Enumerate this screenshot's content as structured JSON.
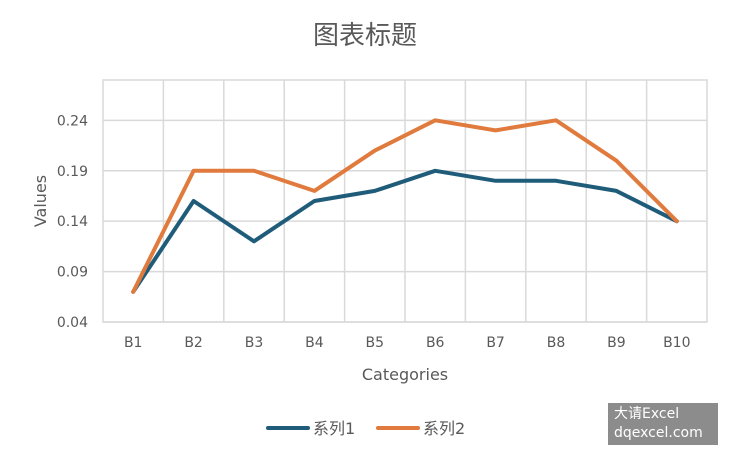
{
  "chart_data": {
    "type": "line",
    "title": "图表标题",
    "xlabel": "Categories",
    "ylabel": "Values",
    "categories": [
      "B1",
      "B2",
      "B3",
      "B4",
      "B5",
      "B6",
      "B7",
      "B8",
      "B9",
      "B10"
    ],
    "ylim": [
      0.04,
      0.28
    ],
    "yticks": [
      "0.04",
      "0.09",
      "0.14",
      "0.19",
      "0.24"
    ],
    "grid": true,
    "legend_position": "bottom",
    "series": [
      {
        "name": "系列1",
        "color": "#1f5c7a",
        "values": [
          0.07,
          0.16,
          0.12,
          0.16,
          0.17,
          0.19,
          0.18,
          0.18,
          0.17,
          0.14
        ]
      },
      {
        "name": "系列2",
        "color": "#e07a3d",
        "values": [
          0.07,
          0.19,
          0.19,
          0.17,
          0.21,
          0.24,
          0.23,
          0.24,
          0.2,
          0.14
        ]
      }
    ]
  },
  "watermark": {
    "line1": "大请Excel",
    "line2": "dqexcel.com"
  }
}
